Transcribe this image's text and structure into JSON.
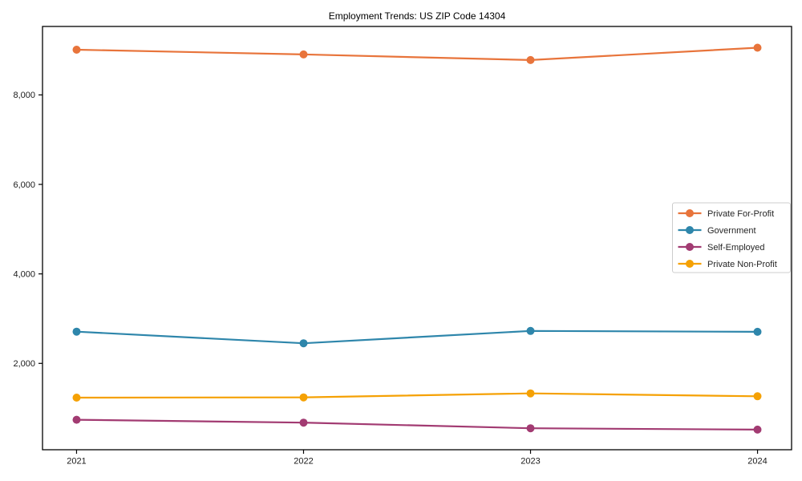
{
  "chart_data": {
    "type": "line",
    "title": "Employment Trends: US ZIP Code 14304",
    "xlabel": "",
    "ylabel": "",
    "x": [
      2021,
      2022,
      2023,
      2024
    ],
    "xtick_labels": [
      "2021",
      "2022",
      "2023",
      "2024"
    ],
    "yticks": [
      {
        "value": 2000,
        "label": "2,000"
      },
      {
        "value": 4000,
        "label": "4,000"
      },
      {
        "value": 6000,
        "label": "6,000"
      },
      {
        "value": 8000,
        "label": "8,000"
      }
    ],
    "series": [
      {
        "name": "Private For-Profit",
        "color": "#e8743b",
        "values": [
          9010,
          8905,
          8780,
          9055
        ]
      },
      {
        "name": "Government",
        "color": "#2e86ab",
        "values": [
          2710,
          2450,
          2725,
          2705
        ]
      },
      {
        "name": "Self-Employed",
        "color": "#a23b72",
        "values": [
          740,
          675,
          550,
          520
        ]
      },
      {
        "name": "Private Non-Profit",
        "color": "#f5a104",
        "values": [
          1235,
          1240,
          1330,
          1265
        ]
      }
    ],
    "xlim": [
      2020.85,
      2024.15
    ],
    "ylim": [
      70,
      9530
    ],
    "grid": false,
    "legend_position": "center-right",
    "axis_color": "#000000",
    "tick_label_color": "#1a1a1a",
    "legend_border_color": "#cccccc",
    "background_color": "#ffffff"
  }
}
